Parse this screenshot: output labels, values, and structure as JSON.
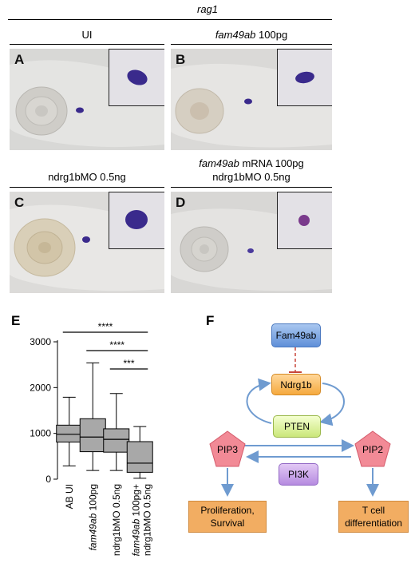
{
  "title": "rag1",
  "panels": {
    "A": {
      "letter": "A",
      "header": "UI"
    },
    "B": {
      "letter": "B",
      "header_italic": "fam49ab",
      "header_rest": " 100pg"
    },
    "C": {
      "letter": "C",
      "header": "ndrg1bMO 0.5ng"
    },
    "D": {
      "letter": "D",
      "header_line1_italic": "fam49ab",
      "header_line1_rest": " mRNA 100pg",
      "header_line2": "ndrg1bMO 0.5ng"
    }
  },
  "chart": {
    "letter": "E",
    "y_ticks": [
      "3000",
      "2000",
      "1000",
      "0"
    ],
    "significance": [
      "****",
      "****",
      "***"
    ],
    "x_labels": [
      {
        "plain": "AB UI"
      },
      {
        "italic": "fam49ab",
        "rest": " 100pg"
      },
      {
        "plain": "ndrg1bMO 0.5ng"
      },
      {
        "italic": "fam49ab",
        "rest": " 100pg+",
        "line2": "ndrg1bMO 0.5ng"
      }
    ]
  },
  "chart_data": {
    "type": "box",
    "ylim": [
      0,
      3000
    ],
    "categories": [
      "AB UI",
      "fam49ab 100pg",
      "ndrg1bMO 0.5ng",
      "fam49ab 100pg+ ndrg1bMO 0.5ng"
    ],
    "boxes": [
      {
        "min": 290,
        "q1": 810,
        "median": 980,
        "q3": 1180,
        "max": 1790
      },
      {
        "min": 190,
        "q1": 600,
        "median": 920,
        "q3": 1320,
        "max": 2540
      },
      {
        "min": 190,
        "q1": 590,
        "median": 870,
        "q3": 1100,
        "max": 1870
      },
      {
        "min": 20,
        "q1": 150,
        "median": 350,
        "q3": 820,
        "max": 1150
      }
    ],
    "comparisons": [
      {
        "from": 0,
        "to": 3,
        "label": "****"
      },
      {
        "from": 1,
        "to": 3,
        "label": "****"
      },
      {
        "from": 2,
        "to": 3,
        "label": "***"
      }
    ]
  },
  "diagram": {
    "letter": "F",
    "fam49ab": "Fam49ab",
    "ndrg1b": "Ndrg1b",
    "pten": "PTEN",
    "pip3": "PIP3",
    "pip2": "PIP2",
    "pi3k": "PI3K",
    "out_left_1": "Proliferation,",
    "out_left_2": "Survival",
    "out_right_1": "T cell",
    "out_right_2": "differentiation"
  },
  "colors": {
    "stain": "#3a2a8c",
    "blue_arrow": "#6f9bd0",
    "red_inhibit": "#c8463c"
  }
}
